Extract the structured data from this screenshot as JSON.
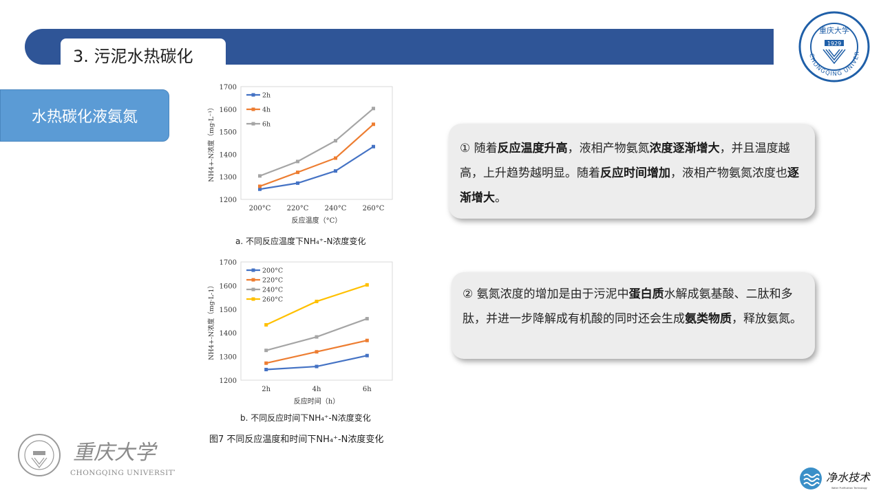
{
  "header": {
    "title": "3. 污泥水热碳化"
  },
  "section_tag": "水热碳化液氨氮",
  "logos": {
    "top_right_seal": "CHONGQING UNIVERSITY",
    "seal_year": "1929",
    "footer_cn": "重庆大学",
    "footer_en": "CHONGQING UNIVERSITY",
    "brand_cn": "净水技术",
    "brand_sub": "Water Purification Technology"
  },
  "colors": {
    "header_blue": "#2f5597",
    "tag_blue": "#5b9bd5",
    "series_blue": "#4472c4",
    "series_orange": "#ed7d31",
    "series_gray": "#a5a5a5",
    "series_yellow": "#ffc000"
  },
  "captions": {
    "chart_a": "a. 不同反应温度下NH₄⁺-N浓度变化",
    "chart_b": "b. 不同反应时间下NH₄⁺-N浓度变化",
    "figure": "图7  不同反应温度和时间下NH₄⁺-N浓度变化"
  },
  "cards": [
    {
      "segments": [
        {
          "text": "①  随着",
          "bold": false
        },
        {
          "text": "反应温度升高",
          "bold": true
        },
        {
          "text": "，液相产物氨氮",
          "bold": false
        },
        {
          "text": "浓度逐渐增大",
          "bold": true
        },
        {
          "text": "，并且温度越高，上升趋势越明显。随着",
          "bold": false
        },
        {
          "text": "反应时间增加",
          "bold": true
        },
        {
          "text": "，液相产物氨氮浓度也",
          "bold": false
        },
        {
          "text": "逐渐增大",
          "bold": true
        },
        {
          "text": "。",
          "bold": false
        }
      ]
    },
    {
      "segments": [
        {
          "text": "②  氨氮浓度的增加是由于污泥中",
          "bold": false
        },
        {
          "text": "蛋白质",
          "bold": true
        },
        {
          "text": "水解成氨基酸、二肽和多肽，并进一步降解成有机酸的同时还会生成",
          "bold": false
        },
        {
          "text": "氨类物质",
          "bold": true
        },
        {
          "text": "，释放氨氮。",
          "bold": false
        }
      ]
    }
  ],
  "chart_data": [
    {
      "type": "line",
      "categories": [
        "200°C",
        "220°C",
        "240°C",
        "260°C"
      ],
      "series": [
        {
          "name": "2h",
          "color": "#4472c4",
          "values": [
            1245,
            1272,
            1326,
            1434
          ]
        },
        {
          "name": "4h",
          "color": "#ed7d31",
          "values": [
            1258,
            1320,
            1383,
            1533
          ]
        },
        {
          "name": "6h",
          "color": "#a5a5a5",
          "values": [
            1304,
            1368,
            1460,
            1603
          ]
        }
      ],
      "xlabel": "反应温度（°C）",
      "ylabel": "NH4+-N浓度（mg·L⁻¹）",
      "ylim": [
        1200,
        1700
      ],
      "yticks": [
        "1700",
        "1600",
        "1500",
        "1400",
        "1300",
        "1200"
      ],
      "legend": "top-left",
      "grid": false
    },
    {
      "type": "line",
      "categories": [
        "2h",
        "4h",
        "6h"
      ],
      "series": [
        {
          "name": "200°C",
          "color": "#4472c4",
          "values": [
            1245,
            1258,
            1304
          ]
        },
        {
          "name": "220°C",
          "color": "#ed7d31",
          "values": [
            1272,
            1320,
            1368
          ]
        },
        {
          "name": "240°C",
          "color": "#a5a5a5",
          "values": [
            1326,
            1383,
            1460
          ]
        },
        {
          "name": "260°C",
          "color": "#ffc000",
          "values": [
            1434,
            1533,
            1603
          ]
        }
      ],
      "xlabel": "反应时间（h）",
      "ylabel": "NH4+-N浓度（mg·L-1）",
      "ylim": [
        1200,
        1700
      ],
      "yticks": [
        "1700",
        "1600",
        "1500",
        "1400",
        "1300",
        "1200"
      ],
      "legend": "top-left",
      "grid": false
    }
  ]
}
